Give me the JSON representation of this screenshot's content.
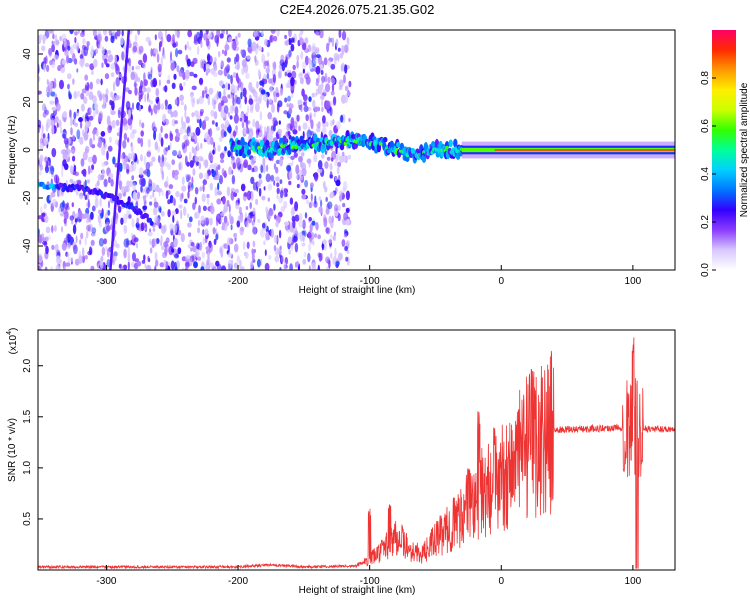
{
  "title": "C2E4.2026.075.21.35.G02",
  "colors": {
    "snr_line": "#ee3333",
    "background": "#ffffff"
  },
  "chart_data": [
    {
      "type": "heatmap",
      "name": "spectrogram",
      "xlabel": "Height of straight line (km)",
      "ylabel": "Frequency (Hz)",
      "xlim": [
        -352,
        132
      ],
      "ylim": [
        -50,
        50
      ],
      "xticks": [
        -300,
        -200,
        -100,
        0,
        100
      ],
      "yticks": [
        -40,
        -20,
        0,
        20,
        40
      ],
      "colorbar": {
        "label": "Normalized spectral amplitude",
        "range": [
          0,
          1
        ],
        "ticks": [
          "0.0",
          "0.2",
          "0.4",
          "0.6",
          "0.8"
        ],
        "colormap": [
          "#ffffff",
          "#d8c8ff",
          "#8a3cff",
          "#3300ff",
          "#0077ff",
          "#00d0ff",
          "#00ff99",
          "#33ff00",
          "#ccff00",
          "#ffee00",
          "#ff9900",
          "#ff2a00",
          "#ff0066"
        ]
      },
      "features": {
        "noise_region_x": [
          -352,
          -115
        ],
        "carrier_start_x": -30,
        "carrier_freq_hz": 0,
        "dispersed_track": [
          [
            -205,
            2
          ],
          [
            -180,
            0
          ],
          [
            -140,
            3
          ],
          [
            -110,
            4
          ],
          [
            -95,
            3
          ],
          [
            -80,
            0
          ],
          [
            -65,
            -2
          ],
          [
            -50,
            0
          ],
          [
            -30,
            0
          ]
        ],
        "slant_track": [
          [
            -352,
            -15
          ],
          [
            -320,
            -16
          ],
          [
            -300,
            -19
          ],
          [
            -280,
            -24
          ],
          [
            -265,
            -30
          ]
        ],
        "streak_line": [
          [
            -297,
            -50
          ],
          [
            -283,
            50
          ]
        ]
      }
    },
    {
      "type": "line",
      "name": "snr",
      "xlabel": "Height of straight line (km)",
      "ylabel": "SNR (10 * v/v)",
      "yscale_label": "(x10",
      "yscale_exp": "4",
      "xlim": [
        -352,
        132
      ],
      "ylim": [
        0,
        23500
      ],
      "xticks": [
        -300,
        -200,
        -100,
        0,
        100
      ],
      "yticks": [
        5000,
        10000,
        15000,
        20000
      ],
      "ytick_labels": [
        "0.5",
        "1.0",
        "1.5",
        "2.0"
      ],
      "series": [
        {
          "name": "",
          "points": [
            [
              -352,
              300
            ],
            [
              -200,
              300
            ],
            [
              -175,
              500
            ],
            [
              -150,
              300
            ],
            [
              -110,
              400
            ],
            [
              -100,
              1000
            ],
            [
              -90,
              2000
            ],
            [
              -80,
              3500
            ],
            [
              -70,
              2000
            ],
            [
              -60,
              1500
            ],
            [
              -50,
              3000
            ],
            [
              -40,
              4000
            ],
            [
              -30,
              5500
            ],
            [
              -20,
              7000
            ],
            [
              -10,
              8000
            ],
            [
              0,
              9000
            ],
            [
              10,
              10500
            ],
            [
              20,
              12000
            ],
            [
              30,
              13000
            ],
            [
              40,
              13700
            ],
            [
              60,
              13800
            ],
            [
              80,
              13900
            ],
            [
              95,
              14000
            ],
            [
              100,
              14000
            ],
            [
              105,
              13800
            ],
            [
              110,
              13800
            ],
            [
              132,
              13800
            ]
          ],
          "spikes": [
            [
              -100,
              6000
            ],
            [
              -85,
              6500
            ],
            [
              -25,
              10000
            ],
            [
              -17,
              16000
            ],
            [
              -5,
              14000
            ],
            [
              100,
              23500
            ],
            [
              103,
              200
            ]
          ]
        }
      ]
    }
  ]
}
